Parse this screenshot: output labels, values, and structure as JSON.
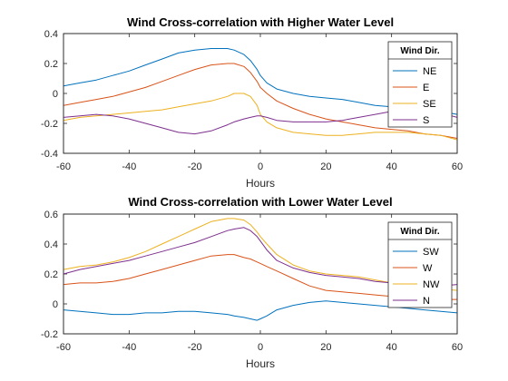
{
  "chart_data": [
    {
      "type": "line",
      "title": "Wind Cross-correlation with Higher Water Level",
      "xlabel": "Hours",
      "ylabel": "",
      "xlim": [
        -60,
        60
      ],
      "ylim": [
        -0.4,
        0.4
      ],
      "xticks": [
        "-60",
        "-40",
        "-20",
        "0",
        "20",
        "40",
        "60"
      ],
      "xtick_values": [
        -60,
        -40,
        -20,
        0,
        20,
        40,
        60
      ],
      "yticks": [
        "-0.4",
        "-0.2",
        "0",
        "0.2",
        "0.4"
      ],
      "ytick_values": [
        -0.4,
        -0.2,
        0,
        0.2,
        0.4
      ],
      "legend_title": "Wind Dir.",
      "legend_position": "right",
      "x": [
        -60,
        -55,
        -50,
        -45,
        -40,
        -35,
        -30,
        -25,
        -20,
        -15,
        -10,
        -8,
        -5,
        -3,
        -1,
        0,
        2,
        5,
        10,
        15,
        20,
        25,
        30,
        35,
        40,
        45,
        50,
        55,
        60
      ],
      "series": [
        {
          "name": "NE",
          "color": "#0072BD",
          "values": [
            0.05,
            0.07,
            0.09,
            0.12,
            0.15,
            0.19,
            0.23,
            0.27,
            0.29,
            0.3,
            0.3,
            0.29,
            0.26,
            0.22,
            0.16,
            0.12,
            0.07,
            0.03,
            0.0,
            -0.02,
            -0.03,
            -0.04,
            -0.06,
            -0.08,
            -0.09,
            -0.1,
            -0.11,
            -0.12,
            -0.14
          ]
        },
        {
          "name": "E",
          "color": "#D95319",
          "values": [
            -0.08,
            -0.06,
            -0.04,
            -0.02,
            0.01,
            0.04,
            0.08,
            0.12,
            0.16,
            0.19,
            0.2,
            0.2,
            0.18,
            0.14,
            0.08,
            0.04,
            0.0,
            -0.05,
            -0.1,
            -0.14,
            -0.17,
            -0.19,
            -0.21,
            -0.23,
            -0.24,
            -0.25,
            -0.27,
            -0.28,
            -0.3
          ]
        },
        {
          "name": "SE",
          "color": "#EDB120",
          "values": [
            -0.18,
            -0.16,
            -0.15,
            -0.14,
            -0.13,
            -0.12,
            -0.11,
            -0.09,
            -0.07,
            -0.05,
            -0.02,
            0.0,
            0.0,
            -0.02,
            -0.08,
            -0.14,
            -0.19,
            -0.23,
            -0.26,
            -0.27,
            -0.28,
            -0.28,
            -0.27,
            -0.26,
            -0.26,
            -0.26,
            -0.27,
            -0.28,
            -0.31
          ]
        },
        {
          "name": "S",
          "color": "#7E2F8E",
          "values": [
            -0.16,
            -0.15,
            -0.14,
            -0.15,
            -0.17,
            -0.2,
            -0.23,
            -0.26,
            -0.27,
            -0.25,
            -0.21,
            -0.19,
            -0.17,
            -0.16,
            -0.15,
            -0.15,
            -0.16,
            -0.18,
            -0.19,
            -0.19,
            -0.19,
            -0.18,
            -0.16,
            -0.14,
            -0.12,
            -0.11,
            -0.1,
            -0.13,
            -0.16
          ]
        }
      ]
    },
    {
      "type": "line",
      "title": "Wind Cross-correlation with Lower Water Level",
      "xlabel": "Hours",
      "ylabel": "",
      "xlim": [
        -60,
        60
      ],
      "ylim": [
        -0.2,
        0.6
      ],
      "xticks": [
        "-60",
        "-40",
        "-20",
        "0",
        "20",
        "40",
        "60"
      ],
      "xtick_values": [
        -60,
        -40,
        -20,
        0,
        20,
        40,
        60
      ],
      "yticks": [
        "-0.2",
        "0",
        "0.2",
        "0.4",
        "0.6"
      ],
      "ytick_values": [
        -0.2,
        0,
        0.2,
        0.4,
        0.6
      ],
      "legend_title": "Wind Dir.",
      "legend_position": "right",
      "x": [
        -60,
        -55,
        -50,
        -45,
        -40,
        -35,
        -30,
        -25,
        -20,
        -15,
        -10,
        -8,
        -5,
        -3,
        -1,
        0,
        2,
        5,
        10,
        15,
        20,
        25,
        30,
        35,
        40,
        45,
        50,
        55,
        60
      ],
      "series": [
        {
          "name": "SW",
          "color": "#0072BD",
          "values": [
            -0.04,
            -0.05,
            -0.06,
            -0.07,
            -0.07,
            -0.06,
            -0.06,
            -0.05,
            -0.05,
            -0.06,
            -0.07,
            -0.08,
            -0.09,
            -0.1,
            -0.11,
            -0.1,
            -0.08,
            -0.04,
            -0.01,
            0.01,
            0.02,
            0.01,
            0.0,
            -0.01,
            -0.02,
            -0.03,
            -0.04,
            -0.05,
            -0.06
          ]
        },
        {
          "name": "W",
          "color": "#D95319",
          "values": [
            0.13,
            0.14,
            0.14,
            0.15,
            0.17,
            0.2,
            0.23,
            0.26,
            0.29,
            0.32,
            0.33,
            0.33,
            0.31,
            0.3,
            0.28,
            0.27,
            0.25,
            0.22,
            0.17,
            0.12,
            0.09,
            0.08,
            0.07,
            0.06,
            0.05,
            0.04,
            0.04,
            0.03,
            0.03
          ]
        },
        {
          "name": "NW",
          "color": "#EDB120",
          "values": [
            0.23,
            0.25,
            0.26,
            0.28,
            0.31,
            0.35,
            0.4,
            0.45,
            0.5,
            0.55,
            0.57,
            0.57,
            0.56,
            0.53,
            0.48,
            0.45,
            0.4,
            0.33,
            0.26,
            0.22,
            0.2,
            0.19,
            0.18,
            0.16,
            0.14,
            0.13,
            0.12,
            0.1,
            0.09
          ]
        },
        {
          "name": "N",
          "color": "#7E2F8E",
          "values": [
            0.2,
            0.23,
            0.25,
            0.27,
            0.29,
            0.32,
            0.35,
            0.38,
            0.41,
            0.45,
            0.49,
            0.5,
            0.51,
            0.49,
            0.45,
            0.42,
            0.36,
            0.29,
            0.24,
            0.21,
            0.19,
            0.18,
            0.17,
            0.15,
            0.14,
            0.13,
            0.12,
            0.12,
            0.13
          ]
        }
      ]
    }
  ]
}
